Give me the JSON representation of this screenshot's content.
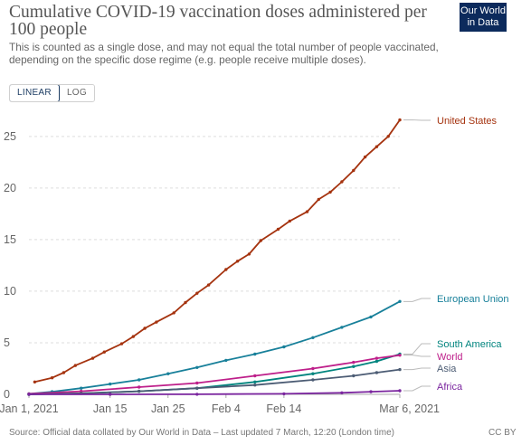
{
  "header": {
    "title": "Cumulative COVID-19 vaccination doses administered per 100 people",
    "subtitle": "This is counted as a single dose, and may not equal the total number of people vaccinated, depending on the specific dose regime (e.g. people receive multiple doses).",
    "logo_line1": "Our World",
    "logo_line2": "in Data"
  },
  "controls": {
    "linear_label": "LINEAR",
    "log_label": "LOG",
    "selected": "LINEAR"
  },
  "footer": {
    "source": "Source: Official data collated by Our World in Data – Last updated 7 March, 12:20 (London time)",
    "license": "CC BY"
  },
  "chart_data": {
    "type": "line",
    "title": "Cumulative COVID-19 vaccination doses administered per 100 people",
    "x_type": "date",
    "xlim": [
      "2021-01-01",
      "2021-03-06"
    ],
    "ylim": [
      0,
      27
    ],
    "yticks": [
      0,
      5,
      10,
      15,
      20,
      25
    ],
    "xticks": [
      {
        "date": "2021-01-01",
        "label": "Jan 1, 2021"
      },
      {
        "date": "2021-01-15",
        "label": "Jan 15"
      },
      {
        "date": "2021-01-25",
        "label": "Jan 25"
      },
      {
        "date": "2021-02-04",
        "label": "Feb 4"
      },
      {
        "date": "2021-02-14",
        "label": "Feb 14"
      },
      {
        "date": "2021-03-06",
        "label": "Mar 6, 2021"
      }
    ],
    "grid": "horizontal-dashed",
    "legend_placement": "right-end-labels",
    "series": [
      {
        "name": "United States",
        "color": "#a5330f",
        "x": [
          "2021-01-02",
          "2021-01-05",
          "2021-01-07",
          "2021-01-09",
          "2021-01-12",
          "2021-01-14",
          "2021-01-17",
          "2021-01-19",
          "2021-01-21",
          "2021-01-23",
          "2021-01-26",
          "2021-01-28",
          "2021-01-30",
          "2021-02-01",
          "2021-02-04",
          "2021-02-06",
          "2021-02-08",
          "2021-02-10",
          "2021-02-13",
          "2021-02-15",
          "2021-02-18",
          "2021-02-20",
          "2021-02-22",
          "2021-02-24",
          "2021-02-26",
          "2021-02-28",
          "2021-03-02",
          "2021-03-04",
          "2021-03-06"
        ],
        "y": [
          1.2,
          1.6,
          2.1,
          2.8,
          3.5,
          4.1,
          4.9,
          5.6,
          6.4,
          7.0,
          7.9,
          8.9,
          9.8,
          10.6,
          12.1,
          12.9,
          13.6,
          14.9,
          16.0,
          16.8,
          17.7,
          18.9,
          19.6,
          20.6,
          21.7,
          23.0,
          24.0,
          25.0,
          26.6
        ]
      },
      {
        "name": "European Union",
        "color": "#18809a",
        "x": [
          "2021-01-01",
          "2021-01-05",
          "2021-01-10",
          "2021-01-15",
          "2021-01-20",
          "2021-01-25",
          "2021-01-30",
          "2021-02-04",
          "2021-02-09",
          "2021-02-14",
          "2021-02-19",
          "2021-02-24",
          "2021-03-01",
          "2021-03-06"
        ],
        "y": [
          0.05,
          0.25,
          0.6,
          1.0,
          1.4,
          2.0,
          2.6,
          3.3,
          3.9,
          4.6,
          5.5,
          6.5,
          7.5,
          9.0
        ]
      },
      {
        "name": "South America",
        "color": "#00847e",
        "x": [
          "2021-01-01",
          "2021-01-10",
          "2021-01-20",
          "2021-01-30",
          "2021-02-09",
          "2021-02-19",
          "2021-02-26",
          "2021-03-02",
          "2021-03-06"
        ],
        "y": [
          0.0,
          0.1,
          0.3,
          0.6,
          1.2,
          2.0,
          2.7,
          3.2,
          3.9
        ]
      },
      {
        "name": "World",
        "color": "#be1f8a",
        "x": [
          "2021-01-01",
          "2021-01-10",
          "2021-01-20",
          "2021-01-30",
          "2021-02-09",
          "2021-02-19",
          "2021-02-26",
          "2021-03-02",
          "2021-03-06"
        ],
        "y": [
          0.05,
          0.3,
          0.7,
          1.1,
          1.8,
          2.5,
          3.1,
          3.5,
          3.8
        ]
      },
      {
        "name": "Asia",
        "color": "#4c5c74",
        "x": [
          "2021-01-01",
          "2021-01-10",
          "2021-01-20",
          "2021-01-30",
          "2021-02-09",
          "2021-02-19",
          "2021-02-26",
          "2021-03-02",
          "2021-03-06"
        ],
        "y": [
          0.0,
          0.1,
          0.3,
          0.6,
          0.9,
          1.4,
          1.8,
          2.1,
          2.4
        ]
      },
      {
        "name": "Africa",
        "color": "#7b269f",
        "x": [
          "2021-01-01",
          "2021-01-15",
          "2021-01-30",
          "2021-02-14",
          "2021-02-24",
          "2021-03-01",
          "2021-03-06"
        ],
        "y": [
          0.0,
          0.0,
          0.01,
          0.05,
          0.15,
          0.25,
          0.35
        ]
      }
    ]
  }
}
